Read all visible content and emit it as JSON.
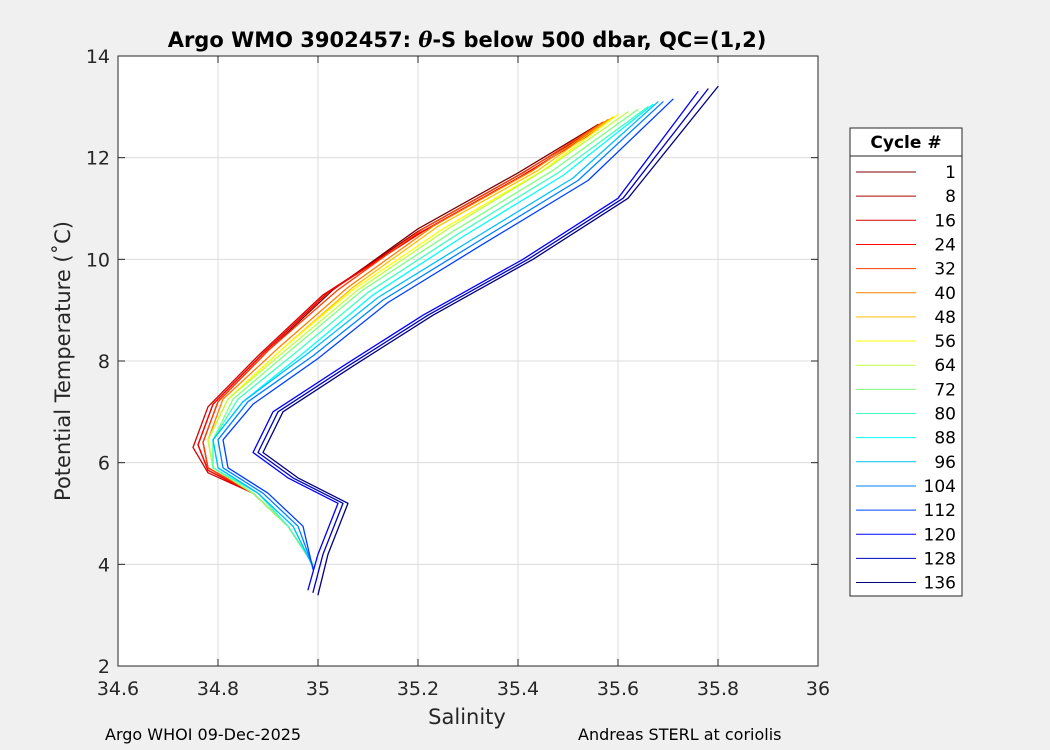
{
  "chart_data": {
    "type": "line",
    "title_prefix": "Argo WMO 3902457: ",
    "title_theta": "θ",
    "title_suffix": "-S below 500 dbar,  QC=(1,2)",
    "xlabel": "Salinity",
    "ylabel": "Potential Temperature (˚C)",
    "xlim": [
      34.6,
      36
    ],
    "ylim": [
      2,
      14
    ],
    "xticks": [
      34.6,
      34.8,
      35,
      35.2,
      35.4,
      35.6,
      35.8,
      36
    ],
    "xtick_labels": [
      "34.6",
      "34.8",
      "35",
      "35.2",
      "35.4",
      "35.6",
      "35.8",
      "36"
    ],
    "yticks": [
      2,
      4,
      6,
      8,
      10,
      12,
      14
    ],
    "ytick_labels": [
      "2",
      "4",
      "6",
      "8",
      "10",
      "12",
      "14"
    ],
    "grid": true,
    "legend_title": "Cycle #",
    "legend_position": "right-outside",
    "series": [
      {
        "name": "1",
        "color": "#800000",
        "salinity": [
          34.99,
          34.94,
          34.87,
          34.78,
          34.77,
          34.8,
          34.9,
          35.03,
          35.2,
          35.4,
          35.56
        ],
        "theta": [
          4.0,
          4.75,
          5.4,
          5.9,
          6.4,
          7.2,
          8.2,
          9.4,
          10.6,
          11.7,
          12.65
        ]
      },
      {
        "name": "8",
        "color": "#aa0000",
        "salinity": [
          34.99,
          34.94,
          34.87,
          34.78,
          34.76,
          34.79,
          34.89,
          35.02,
          35.2,
          35.4,
          35.56
        ],
        "theta": [
          4.0,
          4.75,
          5.4,
          5.85,
          6.35,
          7.15,
          8.15,
          9.35,
          10.55,
          11.65,
          12.6
        ]
      },
      {
        "name": "16",
        "color": "#d40000",
        "salinity": [
          34.99,
          34.94,
          34.87,
          34.78,
          34.75,
          34.78,
          34.88,
          35.01,
          35.2,
          35.4,
          35.56
        ],
        "theta": [
          4.0,
          4.75,
          5.4,
          5.8,
          6.3,
          7.1,
          8.1,
          9.3,
          10.5,
          11.6,
          12.55
        ]
      },
      {
        "name": "24",
        "color": "#ff0000",
        "salinity": [
          34.99,
          34.94,
          34.87,
          34.78,
          34.76,
          34.79,
          34.89,
          35.02,
          35.21,
          35.41,
          35.57
        ],
        "theta": [
          4.0,
          4.75,
          5.4,
          5.85,
          6.35,
          7.15,
          8.15,
          9.35,
          10.55,
          11.65,
          12.65
        ]
      },
      {
        "name": "32",
        "color": "#ff4000",
        "salinity": [
          34.99,
          34.94,
          34.87,
          34.78,
          34.77,
          34.8,
          34.9,
          35.04,
          35.21,
          35.41,
          35.57
        ],
        "theta": [
          4.0,
          4.75,
          5.4,
          5.9,
          6.4,
          7.2,
          8.2,
          9.4,
          10.6,
          11.7,
          12.7
        ]
      },
      {
        "name": "40",
        "color": "#ff8000",
        "salinity": [
          34.99,
          34.94,
          34.87,
          34.79,
          34.78,
          34.81,
          34.92,
          35.06,
          35.23,
          35.43,
          35.58
        ],
        "theta": [
          4.0,
          4.75,
          5.4,
          5.9,
          6.45,
          7.25,
          8.25,
          9.45,
          10.65,
          11.75,
          12.75
        ]
      },
      {
        "name": "48",
        "color": "#ffbf00",
        "salinity": [
          34.99,
          34.94,
          34.87,
          34.79,
          34.78,
          34.82,
          34.93,
          35.07,
          35.24,
          35.44,
          35.59
        ],
        "theta": [
          4.0,
          4.75,
          5.4,
          5.9,
          6.45,
          7.25,
          8.25,
          9.45,
          10.65,
          11.75,
          12.8
        ]
      },
      {
        "name": "56",
        "color": "#ffff00",
        "salinity": [
          34.99,
          34.94,
          34.87,
          34.79,
          34.78,
          34.82,
          34.93,
          35.07,
          35.25,
          35.45,
          35.6
        ],
        "theta": [
          4.0,
          4.75,
          5.4,
          5.9,
          6.45,
          7.25,
          8.25,
          9.4,
          10.6,
          11.75,
          12.85
        ]
      },
      {
        "name": "64",
        "color": "#bfff40",
        "salinity": [
          34.99,
          34.94,
          34.87,
          34.79,
          34.78,
          34.82,
          34.94,
          35.08,
          35.26,
          35.46,
          35.62
        ],
        "theta": [
          4.0,
          4.75,
          5.4,
          5.9,
          6.45,
          7.25,
          8.25,
          9.4,
          10.6,
          11.8,
          12.9
        ]
      },
      {
        "name": "72",
        "color": "#80ff80",
        "salinity": [
          34.99,
          34.94,
          34.87,
          34.79,
          34.79,
          34.83,
          34.95,
          35.09,
          35.27,
          35.47,
          35.64
        ],
        "theta": [
          4.0,
          4.75,
          5.4,
          5.9,
          6.45,
          7.25,
          8.25,
          9.4,
          10.55,
          11.75,
          12.95
        ]
      },
      {
        "name": "80",
        "color": "#40ffbf",
        "salinity": [
          34.99,
          34.94,
          34.88,
          34.79,
          34.79,
          34.84,
          34.96,
          35.1,
          35.28,
          35.48,
          35.66
        ],
        "theta": [
          4.0,
          4.75,
          5.4,
          5.9,
          6.45,
          7.25,
          8.2,
          9.35,
          10.5,
          11.7,
          13.0
        ]
      },
      {
        "name": "88",
        "color": "#00ffff",
        "salinity": [
          34.99,
          34.95,
          34.88,
          34.8,
          34.79,
          34.85,
          34.97,
          35.11,
          35.29,
          35.49,
          35.67
        ],
        "theta": [
          3.95,
          4.75,
          5.4,
          5.9,
          6.45,
          7.2,
          8.15,
          9.3,
          10.45,
          11.65,
          13.05
        ]
      },
      {
        "name": "96",
        "color": "#00bfff",
        "salinity": [
          34.99,
          34.95,
          34.88,
          34.8,
          34.79,
          34.85,
          34.98,
          35.12,
          35.31,
          35.51,
          35.68
        ],
        "theta": [
          3.95,
          4.75,
          5.4,
          5.9,
          6.45,
          7.2,
          8.15,
          9.25,
          10.4,
          11.6,
          13.1
        ]
      },
      {
        "name": "104",
        "color": "#0080ff",
        "salinity": [
          34.99,
          34.96,
          34.89,
          34.81,
          34.8,
          34.86,
          34.99,
          35.13,
          35.32,
          35.52,
          35.69
        ],
        "theta": [
          3.95,
          4.75,
          5.4,
          5.9,
          6.45,
          7.2,
          8.1,
          9.2,
          10.35,
          11.55,
          13.1
        ]
      },
      {
        "name": "112",
        "color": "#0040ff",
        "salinity": [
          34.99,
          34.97,
          34.9,
          34.82,
          34.81,
          34.87,
          35.0,
          35.14,
          35.33,
          35.54,
          35.71
        ],
        "theta": [
          3.9,
          4.75,
          5.4,
          5.9,
          6.45,
          7.15,
          8.05,
          9.15,
          10.3,
          11.55,
          13.15
        ]
      },
      {
        "name": "120",
        "color": "#0000ff",
        "salinity": [
          34.98,
          35.0,
          35.04,
          34.94,
          34.87,
          34.91,
          35.05,
          35.21,
          35.41,
          35.6,
          35.76
        ],
        "theta": [
          3.5,
          4.2,
          5.2,
          5.7,
          6.2,
          7.0,
          7.9,
          8.9,
          10.0,
          11.2,
          13.3
        ]
      },
      {
        "name": "128",
        "color": "#0000bf",
        "salinity": [
          34.99,
          35.01,
          35.05,
          34.95,
          34.88,
          34.92,
          35.06,
          35.22,
          35.42,
          35.61,
          35.78
        ],
        "theta": [
          3.45,
          4.2,
          5.2,
          5.7,
          6.2,
          7.0,
          7.9,
          8.9,
          10.0,
          11.2,
          13.35
        ]
      },
      {
        "name": "136",
        "color": "#000080",
        "salinity": [
          35.0,
          35.02,
          35.06,
          34.96,
          34.89,
          34.93,
          35.07,
          35.23,
          35.43,
          35.62,
          35.8
        ],
        "theta": [
          3.4,
          4.2,
          5.2,
          5.7,
          6.2,
          7.0,
          7.9,
          8.9,
          10.0,
          11.2,
          13.4
        ]
      }
    ]
  },
  "footer": {
    "left": "Argo WHOI 09-Dec-2025",
    "right": "Andreas STERL at coriolis"
  }
}
